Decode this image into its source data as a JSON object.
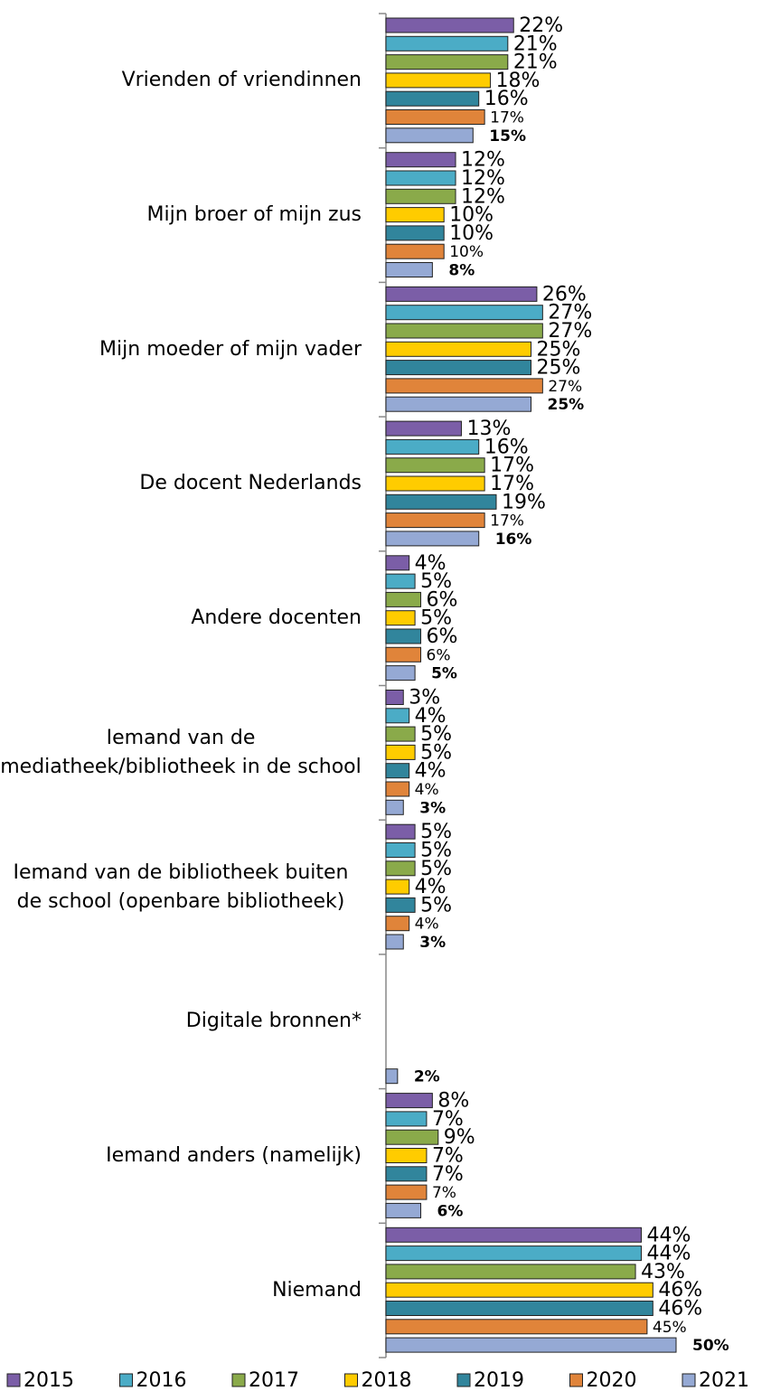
{
  "chart_data": {
    "type": "bar",
    "orientation": "horizontal",
    "categories": [
      "Vrienden of vriendinnen",
      "Mijn broer of mijn zus",
      "Mijn moeder of mijn vader",
      "De docent Nederlands",
      "Andere docenten",
      "Iemand van de mediatheek/bibliotheek in de school",
      "Iemand van de bibliotheek buiten de school (openbare bibliotheek)",
      "Digitale bronnen*",
      "Iemand anders (namelijk)",
      "Niemand"
    ],
    "series": [
      {
        "name": "2015",
        "color": "#7b5ea7",
        "values": [
          22,
          12,
          26,
          13,
          4,
          3,
          5,
          null,
          8,
          44
        ],
        "value_labels": [
          "22%",
          "12%",
          "26%",
          "13%",
          "4%",
          "3%",
          "5%",
          null,
          "8%",
          "44%"
        ]
      },
      {
        "name": "2016",
        "color": "#4bacc6",
        "values": [
          21,
          12,
          27,
          16,
          5,
          4,
          5,
          null,
          7,
          44
        ],
        "value_labels": [
          "21%",
          "12%",
          "27%",
          "16%",
          "5%",
          "4%",
          "5%",
          null,
          "7%",
          "44%"
        ]
      },
      {
        "name": "2017",
        "color": "#8aaa4a",
        "values": [
          21,
          12,
          27,
          17,
          6,
          5,
          5,
          null,
          9,
          43
        ],
        "value_labels": [
          "21%",
          "12%",
          "27%",
          "17%",
          "6%",
          "5%",
          "5%",
          null,
          "9%",
          "43%"
        ]
      },
      {
        "name": "2018",
        "color": "#ffcc00",
        "values": [
          18,
          10,
          25,
          17,
          5,
          5,
          4,
          null,
          7,
          46
        ],
        "value_labels": [
          "18%",
          "10%",
          "25%",
          "17%",
          "5%",
          "5%",
          "4%",
          null,
          "7%",
          "46%"
        ]
      },
      {
        "name": "2019",
        "color": "#31859c",
        "values": [
          16,
          10,
          25,
          19,
          6,
          4,
          5,
          null,
          7,
          46
        ],
        "value_labels": [
          "16%",
          "10%",
          "25%",
          "19%",
          "6%",
          "4%",
          "5%",
          null,
          "7%",
          "46%"
        ]
      },
      {
        "name": "2020",
        "color": "#e0843a",
        "values": [
          17,
          10,
          27,
          17,
          6,
          4,
          4,
          null,
          7,
          45
        ],
        "value_labels": [
          "17%",
          "10%",
          "27%",
          "17%",
          "6%",
          "4%",
          "4%",
          null,
          "7%",
          "45%"
        ]
      },
      {
        "name": "2021",
        "color": "#95a9d4",
        "values": [
          15,
          8,
          25,
          16,
          5,
          3,
          3,
          2,
          6,
          50
        ],
        "value_labels": [
          "15%",
          "8%",
          "25%",
          "16%",
          "5%",
          "3%",
          "3%",
          "2%",
          "6%",
          "50%"
        ]
      }
    ],
    "legend": "bottom"
  }
}
